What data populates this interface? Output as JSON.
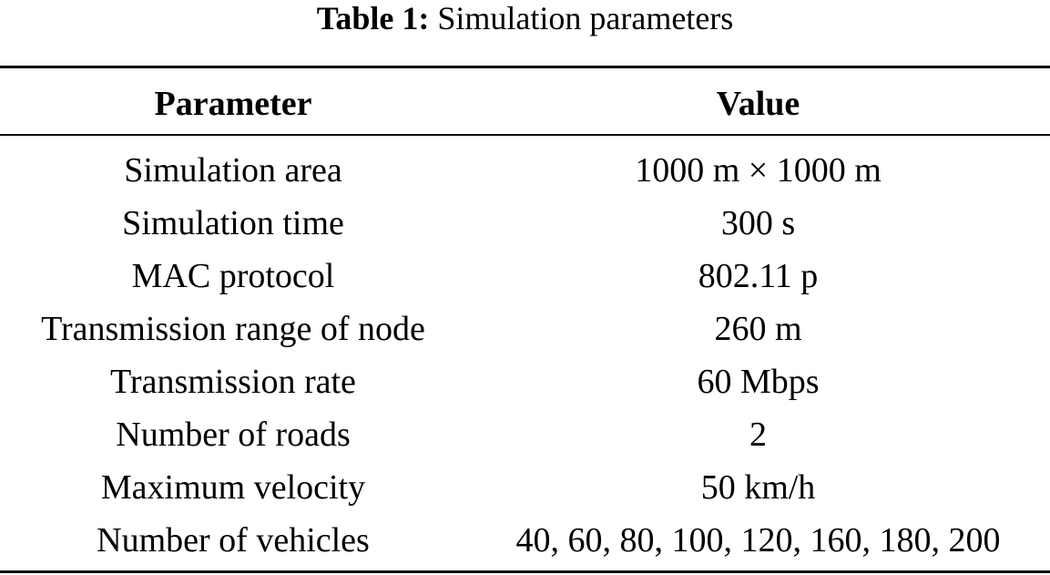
{
  "caption": {
    "label": "Table 1:",
    "text": "Simulation parameters"
  },
  "table": {
    "headers": [
      "Parameter",
      "Value"
    ],
    "rows": [
      [
        "Simulation area",
        "1000 m × 1000 m"
      ],
      [
        "Simulation time",
        "300 s"
      ],
      [
        "MAC protocol",
        "802.11 p"
      ],
      [
        "Transmission range of node",
        "260 m"
      ],
      [
        "Transmission rate",
        "60 Mbps"
      ],
      [
        "Number of roads",
        "2"
      ],
      [
        "Maximum velocity",
        "50 km/h"
      ],
      [
        "Number of vehicles",
        "40, 60, 80, 100, 120, 160, 180, 200"
      ]
    ]
  }
}
